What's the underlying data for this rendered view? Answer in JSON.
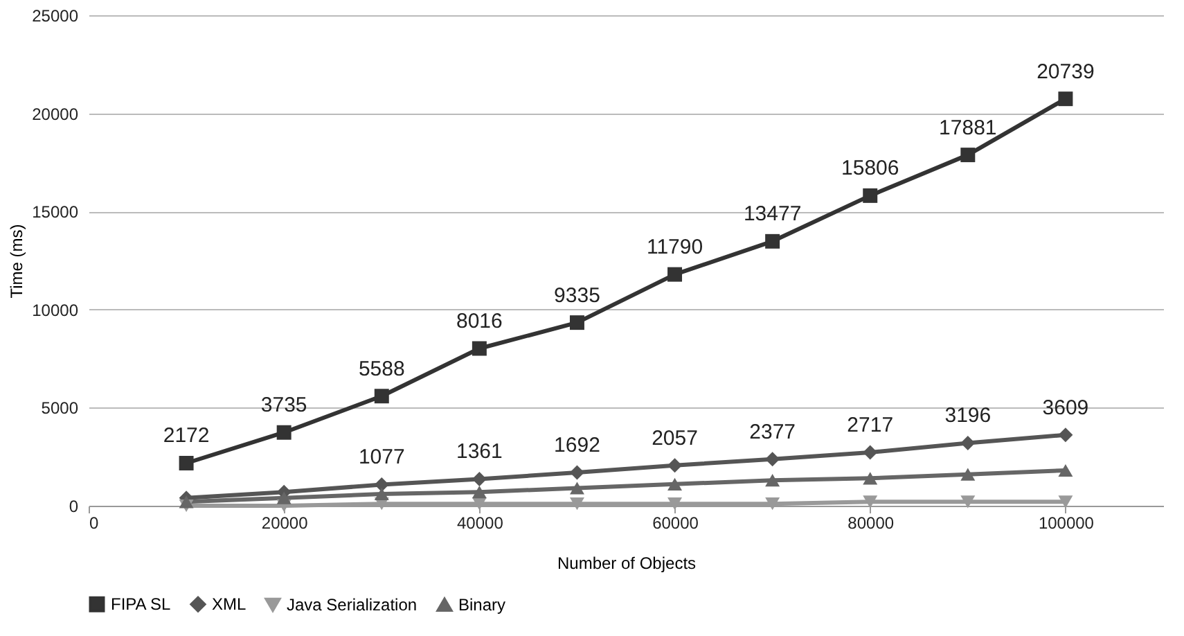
{
  "chart_data": {
    "type": "line",
    "xlabel": "Number of Objects",
    "ylabel": "Time (ms)",
    "x": [
      10000,
      20000,
      30000,
      40000,
      50000,
      60000,
      70000,
      80000,
      90000,
      100000
    ],
    "xlim": [
      0,
      110000
    ],
    "xticks": [
      0,
      20000,
      40000,
      60000,
      80000,
      100000
    ],
    "ylim": [
      0,
      25000
    ],
    "yticks": [
      0,
      5000,
      10000,
      15000,
      20000,
      25000
    ],
    "grid": "y",
    "legend": "bottom",
    "line_style": "solid",
    "series": [
      {
        "name": "FIPA SL",
        "color": "#333333",
        "marker": "square",
        "values": [
          2172,
          3735,
          5588,
          8016,
          9335,
          11790,
          13477,
          15806,
          17881,
          20739
        ],
        "value_labels": [
          "2172",
          "3735",
          "5588",
          "8016",
          "9335",
          "11790",
          "13477",
          "15806",
          "17881",
          "20739"
        ]
      },
      {
        "name": "XML",
        "color": "#555555",
        "marker": "diamond",
        "values": [
          400,
          700,
          1077,
          1361,
          1692,
          2057,
          2377,
          2717,
          3196,
          3609
        ],
        "value_labels": [
          null,
          null,
          "1077",
          "1361",
          "1692",
          "2057",
          "2377",
          "2717",
          "3196",
          "3609"
        ]
      },
      {
        "name": "Java Serialization",
        "color": "#999999",
        "marker": "triangle-down",
        "values": [
          0,
          0,
          100,
          100,
          100,
          100,
          100,
          200,
          200,
          200
        ]
      },
      {
        "name": "Binary",
        "color": "#666666",
        "marker": "triangle-up",
        "values": [
          200,
          400,
          600,
          700,
          900,
          1100,
          1300,
          1400,
          1600,
          1800
        ]
      }
    ]
  }
}
